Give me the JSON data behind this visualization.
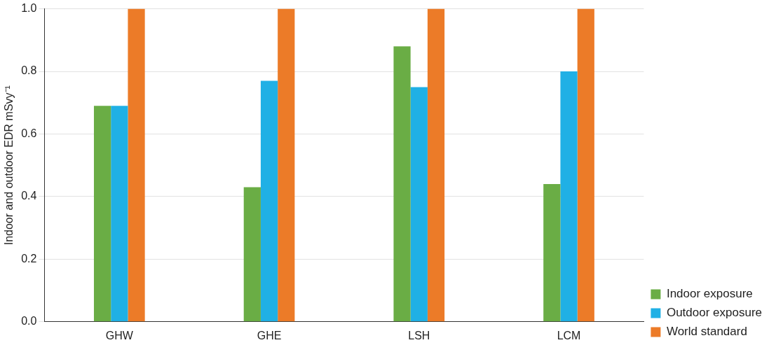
{
  "chart_data": {
    "type": "bar",
    "ylabel": "Indoor and outdoor EDR mSvy⁻¹",
    "categories": [
      "GHW",
      "GHE",
      "LSH",
      "LCM"
    ],
    "series": [
      {
        "name": "Indoor exposure",
        "color": "#6aad45",
        "values": [
          0.69,
          0.43,
          0.88,
          0.44
        ]
      },
      {
        "name": "Outdoor exposure",
        "color": "#20b0e5",
        "values": [
          0.69,
          0.77,
          0.75,
          0.8
        ]
      },
      {
        "name": "World standard",
        "color": "#ec7b28",
        "values": [
          1.0,
          1.0,
          1.0,
          1.0
        ]
      }
    ],
    "ylim": [
      0,
      1
    ],
    "yticks": [
      {
        "value": 0,
        "label": "0.0"
      },
      0.2,
      0.4,
      0.6,
      0.8,
      {
        "value": 1,
        "label": "1.0"
      }
    ],
    "grid": "y",
    "legend": "bottom right"
  }
}
